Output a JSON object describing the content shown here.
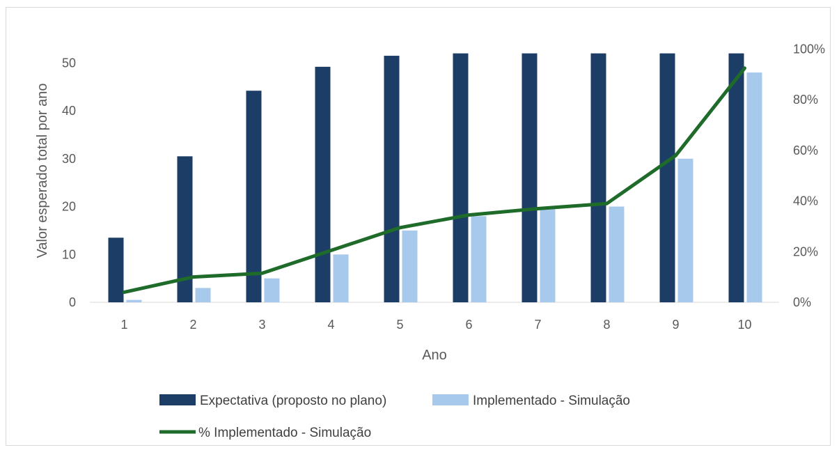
{
  "chart_data": {
    "type": "bar",
    "title": "",
    "xlabel": "Ano",
    "ylabel": "Valor esperado total por ano",
    "categories": [
      "1",
      "2",
      "3",
      "4",
      "5",
      "6",
      "7",
      "8",
      "9",
      "10"
    ],
    "ylim": [
      0,
      55
    ],
    "yticks": [
      "0",
      "10",
      "20",
      "30",
      "40",
      "50"
    ],
    "y2lim": [
      0,
      1.04
    ],
    "y2ticks": [
      "0%",
      "20%",
      "40%",
      "60%",
      "80%",
      "100%"
    ],
    "grid": false,
    "legend_position": "bottom",
    "series": [
      {
        "name": "Expectativa (proposto no plano)",
        "type": "bar",
        "axis": "left",
        "color": "#1b3d66",
        "values": [
          13.5,
          30.5,
          44.2,
          49.2,
          51.5,
          52,
          52,
          52,
          52,
          52
        ]
      },
      {
        "name": "Implementado - Simulação",
        "type": "bar",
        "axis": "left",
        "color": "#a6c9ec",
        "values": [
          0.5,
          3,
          5,
          10,
          15,
          18,
          19.5,
          20,
          30,
          48
        ]
      },
      {
        "name": "% Implementado - Simulação",
        "type": "line",
        "axis": "right",
        "color": "#1e6b2a",
        "values": [
          0.04,
          0.1,
          0.115,
          0.205,
          0.295,
          0.345,
          0.37,
          0.39,
          0.58,
          0.925
        ]
      }
    ]
  }
}
